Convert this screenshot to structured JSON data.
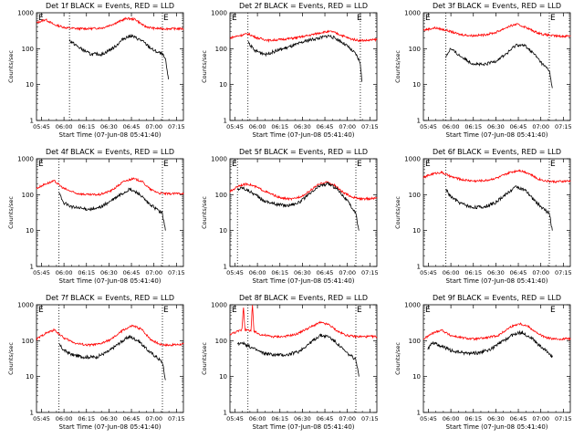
{
  "colors": {
    "events": "#000000",
    "lld": "#ff0000",
    "axis": "#000000"
  },
  "chart_data": [
    {
      "type": "line",
      "title": "Det 1f BLACK = Events, RED = LLD",
      "xlabel": "Start Time (07-Jun-08 05:41:40)",
      "ylabel": "Counts/sec",
      "x_ticks": [
        "05:45",
        "06:00",
        "06:15",
        "06:30",
        "06:45",
        "07:00",
        "07:15"
      ],
      "y_ticks": [
        "1",
        "10",
        "100",
        "1000"
      ],
      "y_scale": "log",
      "ylim": [
        1,
        1000
      ],
      "xlim_minutes": [
        0,
        98
      ],
      "markers": [
        "E",
        "E"
      ],
      "dotted_lines_minutes": [
        22,
        84
      ],
      "series": [
        {
          "role": "lld",
          "x": [
            0,
            6,
            12,
            20,
            28,
            36,
            44,
            52,
            60,
            66,
            72,
            78,
            84,
            90,
            98
          ],
          "values": [
            520,
            650,
            460,
            380,
            360,
            360,
            380,
            500,
            700,
            650,
            420,
            370,
            360,
            360,
            360
          ]
        },
        {
          "role": "events",
          "x": [
            22,
            28,
            36,
            44,
            52,
            58,
            63,
            70,
            78,
            84,
            86,
            88
          ],
          "values": [
            170,
            110,
            70,
            70,
            110,
            190,
            230,
            170,
            90,
            70,
            50,
            14
          ]
        }
      ]
    },
    {
      "type": "line",
      "title": "Det 2f BLACK = Events, RED = LLD",
      "xlabel": "Start Time (07-Jun-08 05:41:40)",
      "ylabel": "Counts/sec",
      "x_ticks": [
        "05:45",
        "06:00",
        "06:15",
        "06:30",
        "06:45",
        "07:00",
        "07:15"
      ],
      "y_ticks": [
        "1",
        "10",
        "100",
        "1000"
      ],
      "y_scale": "log",
      "ylim": [
        1,
        1000
      ],
      "xlim_minutes": [
        0,
        98
      ],
      "markers": [
        "E",
        "E"
      ],
      "dotted_lines_minutes": [
        12,
        87
      ],
      "series": [
        {
          "role": "lld",
          "x": [
            0,
            6,
            12,
            18,
            26,
            34,
            44,
            54,
            62,
            68,
            74,
            80,
            86,
            92,
            98
          ],
          "values": [
            200,
            230,
            260,
            200,
            170,
            180,
            200,
            240,
            290,
            300,
            240,
            190,
            170,
            170,
            180
          ]
        },
        {
          "role": "events",
          "x": [
            12,
            16,
            24,
            32,
            42,
            52,
            60,
            66,
            72,
            78,
            84,
            87,
            88
          ],
          "values": [
            160,
            90,
            70,
            90,
            120,
            170,
            200,
            230,
            180,
            120,
            70,
            40,
            12
          ]
        }
      ]
    },
    {
      "type": "line",
      "title": "Det 3f BLACK = Events, RED = LLD",
      "xlabel": "Start Time (07-Jun-08 05:41:40)",
      "ylabel": "Counts/sec",
      "x_ticks": [
        "05:45",
        "06:00",
        "06:15",
        "06:30",
        "06:45",
        "07:00",
        "07:15"
      ],
      "y_ticks": [
        "1",
        "10",
        "100",
        "1000"
      ],
      "y_scale": "log",
      "ylim": [
        1,
        1000
      ],
      "xlim_minutes": [
        0,
        98
      ],
      "markers": [
        "E",
        "E"
      ],
      "dotted_lines_minutes": [
        15,
        84
      ],
      "series": [
        {
          "role": "lld",
          "x": [
            0,
            8,
            16,
            24,
            32,
            40,
            48,
            56,
            62,
            68,
            74,
            80,
            86,
            92,
            98
          ],
          "values": [
            330,
            380,
            320,
            250,
            230,
            240,
            280,
            400,
            480,
            400,
            300,
            250,
            230,
            220,
            230
          ]
        },
        {
          "role": "events",
          "x": [
            15,
            18,
            24,
            32,
            40,
            48,
            56,
            62,
            68,
            74,
            80,
            84,
            86
          ],
          "values": [
            60,
            100,
            65,
            40,
            35,
            45,
            75,
            130,
            120,
            70,
            35,
            25,
            8
          ]
        }
      ]
    },
    {
      "type": "line",
      "title": "Det 4f BLACK = Events, RED = LLD",
      "xlabel": "Start Time (07-Jun-08 05:41:40)",
      "ylabel": "Counts/sec",
      "x_ticks": [
        "05:45",
        "06:00",
        "06:15",
        "06:30",
        "06:45",
        "07:00",
        "07:15"
      ],
      "y_ticks": [
        "1",
        "10",
        "100",
        "1000"
      ],
      "y_scale": "log",
      "ylim": [
        1,
        1000
      ],
      "xlim_minutes": [
        0,
        98
      ],
      "markers": [
        "E",
        "E"
      ],
      "dotted_lines_minutes": [
        15,
        84
      ],
      "series": [
        {
          "role": "lld",
          "x": [
            0,
            6,
            12,
            18,
            26,
            34,
            42,
            50,
            58,
            64,
            70,
            76,
            82,
            88,
            98
          ],
          "values": [
            150,
            200,
            240,
            150,
            110,
            100,
            100,
            130,
            230,
            280,
            240,
            140,
            110,
            105,
            110
          ]
        },
        {
          "role": "events",
          "x": [
            15,
            18,
            24,
            32,
            40,
            48,
            56,
            62,
            68,
            74,
            80,
            84,
            86
          ],
          "values": [
            110,
            60,
            45,
            40,
            40,
            60,
            100,
            140,
            110,
            60,
            40,
            30,
            10
          ]
        }
      ]
    },
    {
      "type": "line",
      "title": "Det 5f BLACK = Events, RED = LLD",
      "xlabel": "Start Time (07-Jun-08 05:41:40)",
      "ylabel": "Counts/sec",
      "x_ticks": [
        "05:45",
        "06:00",
        "06:15",
        "06:30",
        "06:45",
        "07:00",
        "07:15"
      ],
      "y_ticks": [
        "1",
        "10",
        "100",
        "1000"
      ],
      "y_scale": "log",
      "ylim": [
        1,
        1000
      ],
      "xlim_minutes": [
        0,
        98
      ],
      "markers": [
        "E",
        "E"
      ],
      "dotted_lines_minutes": [
        5,
        84
      ],
      "series": [
        {
          "role": "lld",
          "x": [
            0,
            6,
            12,
            18,
            26,
            34,
            42,
            50,
            58,
            64,
            70,
            76,
            82,
            88,
            98
          ],
          "values": [
            120,
            180,
            200,
            160,
            110,
            80,
            75,
            100,
            180,
            230,
            180,
            110,
            85,
            75,
            80
          ]
        },
        {
          "role": "events",
          "x": [
            5,
            8,
            14,
            22,
            30,
            38,
            46,
            54,
            60,
            66,
            72,
            78,
            84,
            86
          ],
          "values": [
            140,
            160,
            120,
            70,
            55,
            50,
            60,
            110,
            180,
            200,
            140,
            70,
            30,
            10
          ]
        }
      ]
    },
    {
      "type": "line",
      "title": "Det 6f BLACK = Events, RED = LLD",
      "xlabel": "Start Time (07-Jun-08 05:41:40)",
      "ylabel": "Counts/sec",
      "x_ticks": [
        "05:45",
        "06:00",
        "06:15",
        "06:30",
        "06:45",
        "07:00",
        "07:15"
      ],
      "y_ticks": [
        "1",
        "10",
        "100",
        "1000"
      ],
      "y_scale": "log",
      "ylim": [
        1,
        1000
      ],
      "xlim_minutes": [
        0,
        98
      ],
      "markers": [
        "E",
        "E"
      ],
      "dotted_lines_minutes": [
        15,
        84
      ],
      "series": [
        {
          "role": "lld",
          "x": [
            0,
            6,
            12,
            18,
            26,
            34,
            42,
            50,
            58,
            64,
            70,
            76,
            82,
            88,
            98
          ],
          "values": [
            300,
            380,
            420,
            320,
            260,
            240,
            250,
            300,
            420,
            480,
            400,
            280,
            240,
            230,
            240
          ]
        },
        {
          "role": "events",
          "x": [
            15,
            18,
            24,
            32,
            40,
            48,
            56,
            62,
            68,
            74,
            80,
            84,
            86
          ],
          "values": [
            140,
            90,
            60,
            45,
            45,
            60,
            110,
            170,
            130,
            70,
            40,
            30,
            10
          ]
        }
      ]
    },
    {
      "type": "line",
      "title": "Det 7f BLACK = Events, RED = LLD",
      "xlabel": "Start Time (07-Jun-08 05:41:40)",
      "ylabel": "Counts/sec",
      "x_ticks": [
        "05:45",
        "06:00",
        "06:15",
        "06:30",
        "06:45",
        "07:00",
        "07:15"
      ],
      "y_ticks": [
        "1",
        "10",
        "100",
        "1000"
      ],
      "y_scale": "log",
      "ylim": [
        1,
        1000
      ],
      "xlim_minutes": [
        0,
        98
      ],
      "markers": [
        "E",
        "E"
      ],
      "dotted_lines_minutes": [
        15,
        84
      ],
      "series": [
        {
          "role": "lld",
          "x": [
            0,
            6,
            12,
            18,
            26,
            34,
            42,
            50,
            58,
            64,
            70,
            76,
            82,
            88,
            98
          ],
          "values": [
            110,
            160,
            200,
            120,
            85,
            75,
            80,
            110,
            200,
            260,
            210,
            110,
            80,
            75,
            80
          ]
        },
        {
          "role": "events",
          "x": [
            15,
            18,
            24,
            32,
            40,
            48,
            56,
            62,
            68,
            74,
            80,
            84,
            86
          ],
          "values": [
            80,
            55,
            40,
            35,
            35,
            50,
            90,
            130,
            100,
            55,
            35,
            25,
            8
          ]
        }
      ]
    },
    {
      "type": "line",
      "title": "Det 8f BLACK = Events, RED = LLD",
      "xlabel": "Start Time (07-Jun-08 05:41:40)",
      "ylabel": "Counts/sec",
      "x_ticks": [
        "05:45",
        "06:00",
        "06:15",
        "06:30",
        "06:45",
        "07:00",
        "07:15"
      ],
      "y_ticks": [
        "1",
        "10",
        "100",
        "1000"
      ],
      "y_scale": "log",
      "ylim": [
        1,
        1000
      ],
      "xlim_minutes": [
        0,
        98
      ],
      "markers": [
        "E",
        "E"
      ],
      "dotted_lines_minutes": [
        12,
        84
      ],
      "series": [
        {
          "role": "lld",
          "x": [
            0,
            5,
            8,
            9,
            10,
            14,
            15,
            16,
            20,
            28,
            36,
            44,
            52,
            60,
            66,
            72,
            78,
            84,
            90,
            98
          ],
          "values": [
            150,
            180,
            200,
            1000,
            200,
            190,
            1000,
            180,
            150,
            130,
            130,
            150,
            220,
            320,
            280,
            180,
            140,
            130,
            130,
            130
          ]
        },
        {
          "role": "events",
          "x": [
            5,
            8,
            14,
            22,
            30,
            38,
            46,
            54,
            60,
            66,
            72,
            78,
            84,
            86
          ],
          "values": [
            80,
            90,
            65,
            45,
            40,
            40,
            50,
            90,
            140,
            130,
            80,
            45,
            30,
            10
          ]
        }
      ]
    },
    {
      "type": "line",
      "title": "Det 9f BLACK = Events, RED = LLD",
      "xlabel": "Start Time (07-Jun-08 05:41:40)",
      "ylabel": "Counts/sec",
      "x_ticks": [
        "05:45",
        "06:00",
        "06:15",
        "06:30",
        "06:45",
        "07:00",
        "07:15"
      ],
      "y_ticks": [
        "1",
        "10",
        "100",
        "1000"
      ],
      "y_scale": "log",
      "ylim": [
        1,
        1000
      ],
      "xlim_minutes": [
        0,
        98
      ],
      "markers": [
        "E",
        "E"
      ],
      "dotted_lines_minutes": [],
      "series": [
        {
          "role": "lld",
          "x": [
            0,
            6,
            12,
            18,
            26,
            34,
            42,
            50,
            58,
            64,
            70,
            76,
            82,
            88,
            98
          ],
          "values": [
            110,
            160,
            200,
            140,
            120,
            110,
            120,
            140,
            240,
            300,
            250,
            160,
            120,
            110,
            115
          ]
        },
        {
          "role": "events",
          "x": [
            3,
            6,
            12,
            20,
            28,
            36,
            44,
            52,
            60,
            66,
            72,
            78,
            84,
            86
          ],
          "values": [
            60,
            90,
            70,
            50,
            45,
            45,
            55,
            90,
            150,
            170,
            120,
            70,
            45,
            35
          ]
        }
      ]
    }
  ]
}
